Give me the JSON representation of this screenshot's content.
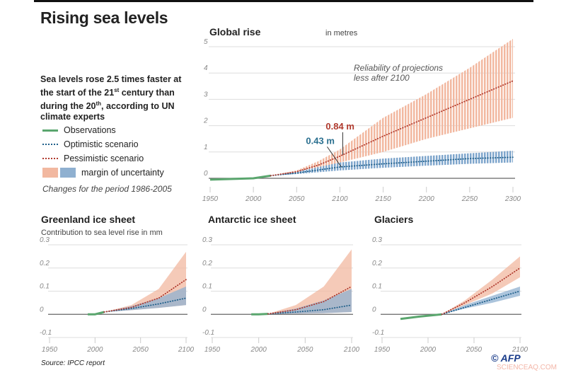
{
  "title": "Rising sea levels",
  "intro": {
    "part1": "Sea levels rose 2.5 times faster at the start of the 21",
    "sup1": "st",
    "part2": " century than during the 20",
    "sup2": "th",
    "part3": ", according to UN climate experts"
  },
  "legend": {
    "observations": "Observations",
    "optimistic": "Optimistic scenario",
    "pessimistic": "Pessimistic scenario",
    "uncertainty": "margin of uncertainty",
    "period_note": "Changes for the period 1986-2005"
  },
  "colors": {
    "observations": "#5aa66e",
    "optimistic": "#1f5f8a",
    "pessimistic": "#b03a2e",
    "optimistic_band": "#8fb0d0",
    "pessimistic_band": "#f2b8a0"
  },
  "source": "Source: IPCC report",
  "credit": "© AFP",
  "watermark": "SCIENCEAQ.COM",
  "chart_data": [
    {
      "type": "line",
      "title": "Global rise",
      "unit_label": "in metres",
      "annotation": "Reliability of projections less after 2100",
      "annotation_lines": [
        "Reliability of projections",
        "less after 2100"
      ],
      "labels": {
        "optimistic_2100": "0.43 m",
        "pessimistic_2100": "0.84 m"
      },
      "xlim": [
        1950,
        2300
      ],
      "ylim": [
        0,
        5
      ],
      "xticks": [
        "1950",
        "2000",
        "2050",
        "2100",
        "2150",
        "2200",
        "2250",
        "2300"
      ],
      "yticks": [
        "0",
        "1",
        "2",
        "3",
        "4",
        "5"
      ],
      "observations": {
        "x": [
          1950,
          1980,
          2000,
          2020
        ],
        "y": [
          -0.05,
          -0.02,
          0,
          0.1
        ]
      },
      "optimistic": {
        "x": [
          2020,
          2050,
          2100,
          2150,
          2200,
          2250,
          2300
        ],
        "y": [
          0.1,
          0.2,
          0.43,
          0.55,
          0.65,
          0.75,
          0.8
        ],
        "low": [
          0.1,
          0.16,
          0.3,
          0.4,
          0.48,
          0.55,
          0.6
        ],
        "high": [
          0.1,
          0.25,
          0.6,
          0.75,
          0.85,
          0.95,
          1.05
        ]
      },
      "pessimistic": {
        "x": [
          2020,
          2050,
          2075,
          2100,
          2150,
          2200,
          2250,
          2300
        ],
        "y": [
          0.1,
          0.25,
          0.5,
          0.84,
          1.6,
          2.3,
          3.0,
          3.7
        ],
        "low": [
          0.1,
          0.2,
          0.38,
          0.6,
          1.0,
          1.5,
          1.9,
          2.3
        ],
        "high": [
          0.1,
          0.3,
          0.65,
          1.1,
          2.3,
          3.2,
          4.2,
          5.3
        ]
      }
    },
    {
      "type": "line",
      "title": "Greenland ice sheet",
      "subtitle": "Contribution to sea level rise in mm",
      "xlim": [
        1950,
        2100
      ],
      "ylim": [
        -0.1,
        0.3
      ],
      "xticks": [
        "1950",
        "2000",
        "2050",
        "2100"
      ],
      "yticks": [
        "-0.1",
        "0",
        "0.1",
        "0.2",
        "0.3"
      ],
      "observations": {
        "x": [
          1992,
          2000,
          2010
        ],
        "y": [
          0,
          0,
          0.01
        ]
      },
      "optimistic": {
        "x": [
          2010,
          2040,
          2070,
          2100
        ],
        "y": [
          0.01,
          0.025,
          0.045,
          0.07
        ],
        "low": [
          0.01,
          0.018,
          0.028,
          0.04
        ],
        "high": [
          0.01,
          0.035,
          0.07,
          0.12
        ]
      },
      "pessimistic": {
        "x": [
          2010,
          2040,
          2070,
          2100
        ],
        "y": [
          0.01,
          0.03,
          0.07,
          0.15
        ],
        "low": [
          0.01,
          0.018,
          0.028,
          0.04
        ],
        "high": [
          0.01,
          0.04,
          0.11,
          0.27
        ]
      }
    },
    {
      "type": "line",
      "title": "Antarctic ice sheet",
      "xlim": [
        1950,
        2100
      ],
      "ylim": [
        -0.1,
        0.3
      ],
      "xticks": [
        "1950",
        "2000",
        "2050",
        "2100"
      ],
      "yticks": [
        "-0.1",
        "0",
        "0.1",
        "0.2",
        "0.3"
      ],
      "observations": {
        "x": [
          1992,
          2000,
          2010
        ],
        "y": [
          0,
          0,
          0.002
        ]
      },
      "optimistic": {
        "x": [
          2010,
          2040,
          2070,
          2100
        ],
        "y": [
          0.002,
          0.01,
          0.02,
          0.04
        ],
        "low": [
          0.002,
          0.003,
          0.005,
          0.01
        ],
        "high": [
          0.002,
          0.025,
          0.06,
          0.11
        ]
      },
      "pessimistic": {
        "x": [
          2010,
          2040,
          2070,
          2100
        ],
        "y": [
          0.002,
          0.02,
          0.055,
          0.12
        ],
        "low": [
          0.002,
          0.003,
          0.005,
          0.01
        ],
        "high": [
          0.002,
          0.04,
          0.12,
          0.28
        ]
      }
    },
    {
      "type": "line",
      "title": "Glaciers",
      "xlim": [
        1950,
        2100
      ],
      "ylim": [
        -0.1,
        0.3
      ],
      "xticks": [
        "1950",
        "2000",
        "2050",
        "2100"
      ],
      "yticks": [
        "-0.1",
        "0",
        "0.1",
        "0.2",
        "0.3"
      ],
      "observations": {
        "x": [
          1970,
          1990,
          2015
        ],
        "y": [
          -0.02,
          -0.01,
          0
        ]
      },
      "optimistic": {
        "x": [
          2015,
          2040,
          2070,
          2100
        ],
        "y": [
          0,
          0.03,
          0.065,
          0.1
        ],
        "low": [
          0,
          0.025,
          0.05,
          0.08
        ],
        "high": [
          0,
          0.04,
          0.08,
          0.12
        ]
      },
      "pessimistic": {
        "x": [
          2015,
          2040,
          2070,
          2100
        ],
        "y": [
          0,
          0.05,
          0.12,
          0.2
        ],
        "low": [
          0,
          0.04,
          0.09,
          0.16
        ],
        "high": [
          0,
          0.06,
          0.15,
          0.25
        ]
      }
    }
  ]
}
